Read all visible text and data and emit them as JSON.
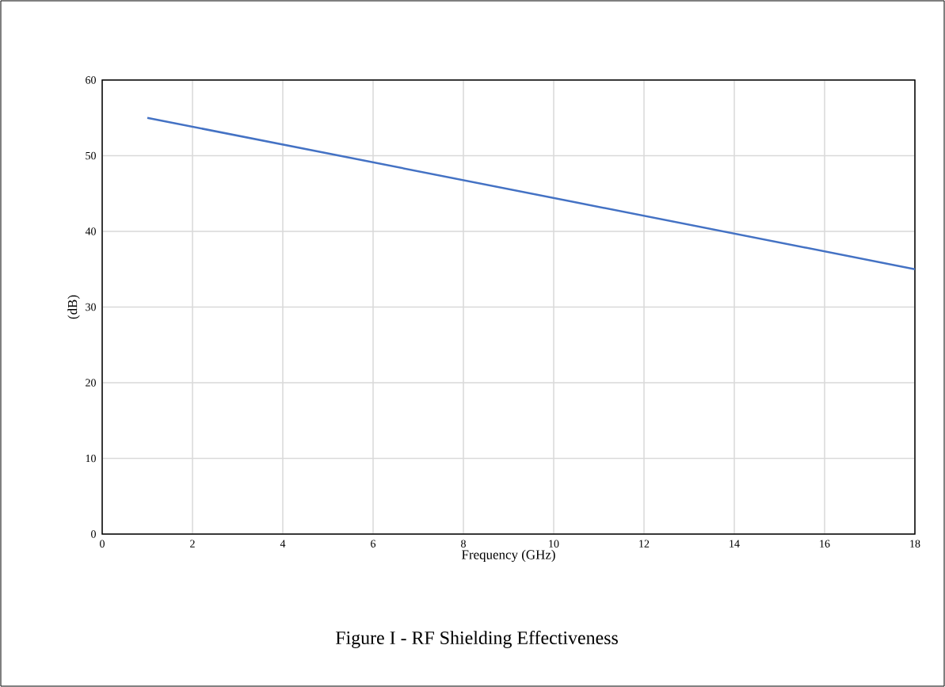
{
  "chart_data": {
    "type": "line",
    "title": "Figure I - RF Shielding Effectiveness",
    "xlabel": "Frequency (GHz)",
    "ylabel": "(dB)",
    "x": [
      1,
      18
    ],
    "series": [
      {
        "color": "#4472c4",
        "values": [
          55,
          35
        ]
      }
    ],
    "xlim": [
      0,
      18
    ],
    "ylim": [
      0,
      60
    ],
    "xticks": [
      0,
      2,
      4,
      6,
      8,
      10,
      12,
      14,
      16,
      18
    ],
    "yticks": [
      0,
      10,
      20,
      30,
      40,
      50,
      60
    ],
    "grid": true
  }
}
